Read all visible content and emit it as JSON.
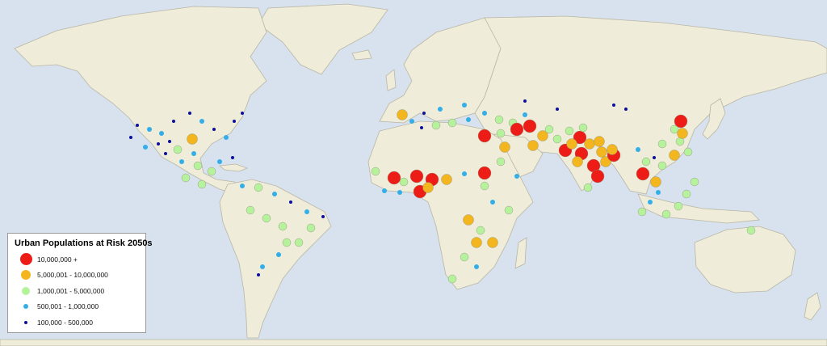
{
  "legend": {
    "title": "Urban Populations at Risk 2050s",
    "classes": [
      {
        "label": "10,000,000 +",
        "color": "#ee1c16"
      },
      {
        "label": "5,000,001 - 10,000,000",
        "color": "#f3b61f"
      },
      {
        "label": "1,000,001 - 5,000,000",
        "color": "#b6f29c"
      },
      {
        "label": "500,001 - 1,000,000",
        "color": "#33aee8"
      },
      {
        "label": "100,000 - 500,000",
        "color": "#0a0f9c"
      }
    ]
  },
  "colors": {
    "ocean": "#d7e2ee",
    "land": "#efecd9",
    "border": "#b9b6a4"
  }
}
